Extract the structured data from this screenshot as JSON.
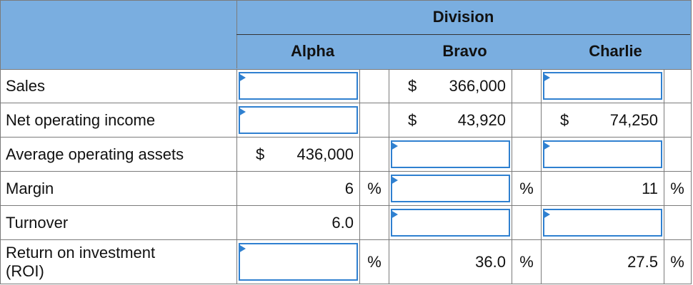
{
  "header": {
    "division": "Division",
    "columns": [
      "Alpha",
      "Bravo",
      "Charlie"
    ]
  },
  "rows": [
    {
      "label": "Sales",
      "alpha": {
        "type": "input",
        "pct": ""
      },
      "bravo": {
        "dollar": "$",
        "value": "366,000",
        "pct": ""
      },
      "charlie": {
        "type": "input",
        "pct": ""
      }
    },
    {
      "label": "Net operating income",
      "alpha": {
        "type": "input",
        "pct": ""
      },
      "bravo": {
        "dollar": "$",
        "value": "43,920",
        "pct": ""
      },
      "charlie": {
        "dollar": "$",
        "value": "74,250",
        "pct": ""
      }
    },
    {
      "label": "Average operating assets",
      "alpha": {
        "dollar": "$",
        "value": "436,000",
        "pct": ""
      },
      "bravo": {
        "type": "input",
        "pct": ""
      },
      "charlie": {
        "type": "input",
        "pct": ""
      }
    },
    {
      "label": "Margin",
      "alpha": {
        "value": "6",
        "pct": "%"
      },
      "bravo": {
        "type": "input",
        "pct": "%"
      },
      "charlie": {
        "value": "11",
        "pct": "%"
      }
    },
    {
      "label": "Turnover",
      "alpha": {
        "value": "6.0",
        "pct": ""
      },
      "bravo": {
        "type": "input",
        "pct": ""
      },
      "charlie": {
        "type": "input",
        "pct": ""
      }
    },
    {
      "label": "Return on investment (ROI)",
      "alpha": {
        "type": "input",
        "pct": "%"
      },
      "bravo": {
        "value": "36.0",
        "pct": "%"
      },
      "charlie": {
        "value": "27.5",
        "pct": "%"
      }
    }
  ]
}
